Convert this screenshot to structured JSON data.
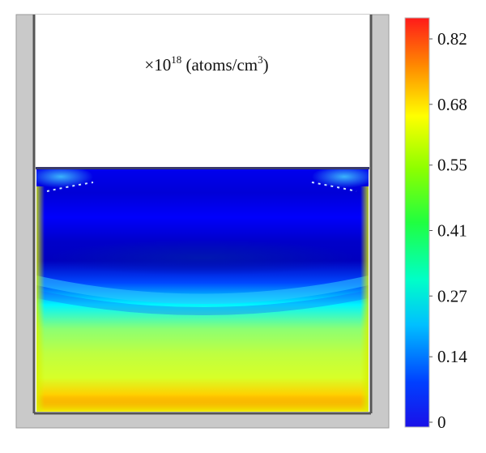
{
  "chart_data": {
    "type": "heatmap",
    "title": "",
    "unit_label": {
      "prefix": "×10",
      "exponent": "18",
      "unit": " (atoms/cm",
      "unit_exponent": "3",
      "suffix": ")"
    },
    "colorbar": {
      "colormap": "jet",
      "range": [
        0,
        0.82
      ],
      "ticks": [
        {
          "value": 0.82,
          "label": "0.82"
        },
        {
          "value": 0.68,
          "label": "0.68"
        },
        {
          "value": 0.55,
          "label": "0.55"
        },
        {
          "value": 0.41,
          "label": "0.41"
        },
        {
          "value": 0.27,
          "label": "0.27"
        },
        {
          "value": 0.14,
          "label": "0.14"
        },
        {
          "value": 0,
          "label": "0"
        }
      ]
    },
    "field_profile": [
      {
        "depth": 0.0,
        "value": 0.09
      },
      {
        "depth": 0.1,
        "value": 0.07
      },
      {
        "depth": 0.2,
        "value": 0.1
      },
      {
        "depth": 0.3,
        "value": 0.06
      },
      {
        "depth": 0.38,
        "value": 0.05
      },
      {
        "depth": 0.47,
        "value": 0.16
      },
      {
        "depth": 0.56,
        "value": 0.3
      },
      {
        "depth": 0.66,
        "value": 0.42
      },
      {
        "depth": 0.76,
        "value": 0.46
      },
      {
        "depth": 0.86,
        "value": 0.48
      },
      {
        "depth": 0.93,
        "value": 0.55
      },
      {
        "depth": 1.0,
        "value": 0.66
      }
    ],
    "bottom_center_minimum": 0.28,
    "wall_maximum": 0.7
  }
}
